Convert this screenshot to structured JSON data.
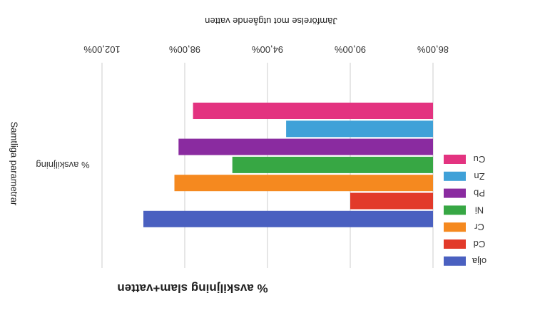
{
  "chart_data": {
    "type": "bar",
    "orientation": "horizontal",
    "title": "% avskiljning slam+vatten",
    "xlabel": "Jämförelse mot utgående vatten",
    "ylabel": "Samtliga parametrar",
    "category": "% avskiljning",
    "tick_labels": [
      "86,00%",
      "90,00%",
      "94,00%",
      "98,00%",
      "102,00%"
    ],
    "xlim": [
      86,
      102
    ],
    "rendered_rotated_180": true,
    "series": [
      {
        "name": "Cu",
        "value": 97.6,
        "color": "#e33380"
      },
      {
        "name": "Zn",
        "value": 93.1,
        "color": "#3fa1d8"
      },
      {
        "name": "Pb",
        "value": 98.3,
        "color": "#8a2ba0"
      },
      {
        "name": "Ni",
        "value": 95.7,
        "color": "#37a744"
      },
      {
        "name": "Cr",
        "value": 98.5,
        "color": "#f5891f"
      },
      {
        "name": "Cd",
        "value": 90.0,
        "color": "#e23a2a"
      },
      {
        "name": "olja",
        "value": 100.0,
        "color": "#4a60c0"
      }
    ],
    "grid": true,
    "legend_position": "right"
  }
}
